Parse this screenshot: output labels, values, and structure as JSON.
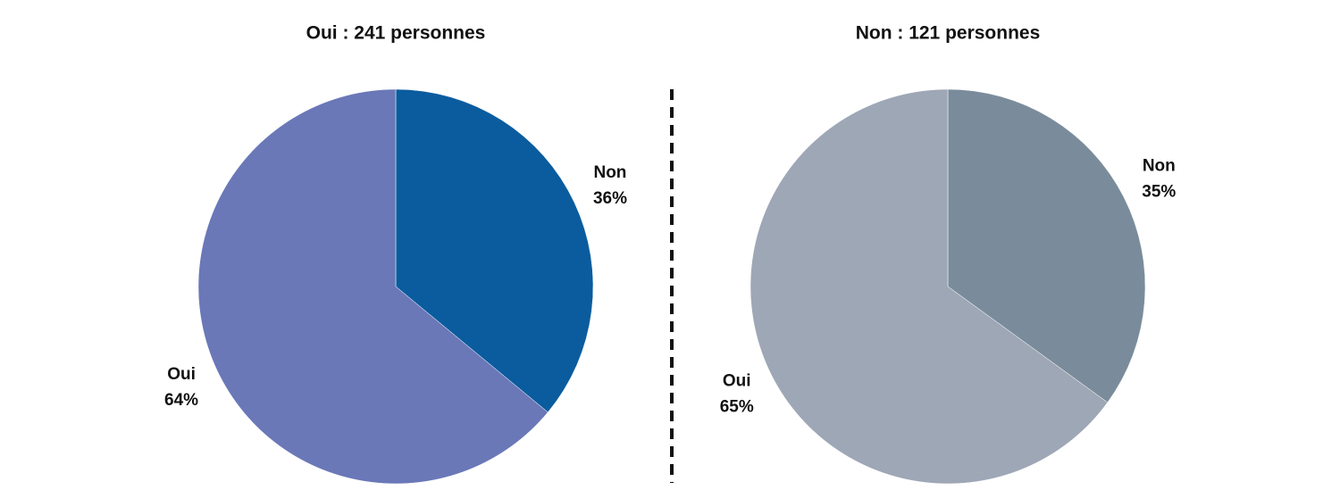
{
  "chart_data": [
    {
      "type": "pie",
      "title": "Oui : 241 personnes",
      "categories": [
        "Non",
        "Oui"
      ],
      "values": [
        36,
        64
      ],
      "value_labels": [
        "36%",
        "64%"
      ],
      "colors": [
        "#0a5c9e",
        "#6a78b8"
      ]
    },
    {
      "type": "pie",
      "title": "Non : 121 personnes",
      "categories": [
        "Non",
        "Oui"
      ],
      "values": [
        35,
        65
      ],
      "value_labels": [
        "35%",
        "65%"
      ],
      "colors": [
        "#7a8c9b",
        "#9ea7b6"
      ]
    }
  ]
}
